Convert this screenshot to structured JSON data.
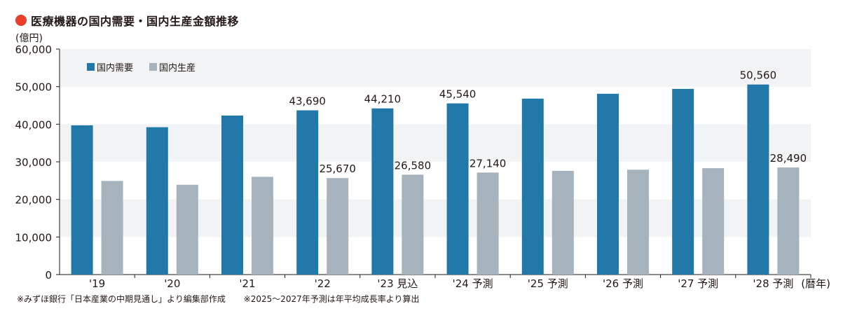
{
  "title": "医療機器の国内需要・国内生産金額推移",
  "colors": {
    "title_dot": "#e8402a",
    "demand": "#2079a8",
    "production": "#a6b2bc",
    "band": "#f2f3f5"
  },
  "chart_data": {
    "type": "bar",
    "y_unit_label": "(億円)",
    "x_unit_label": "(暦年)",
    "ylim": [
      0,
      60000
    ],
    "yticks": [
      "0",
      "10,000",
      "20,000",
      "30,000",
      "40,000",
      "50,000",
      "60,000"
    ],
    "categories": [
      "'19",
      "'20",
      "'21",
      "'22",
      "'23 見込",
      "'24 予測",
      "'25 予測",
      "'26 予測",
      "'27 予測",
      "'28 予測"
    ],
    "legend_position": "top-left",
    "series": [
      {
        "name": "国内需要",
        "values": [
          39700,
          39200,
          42300,
          43690,
          44210,
          45540,
          46800,
          48100,
          49400,
          50560
        ],
        "labels": [
          "",
          "",
          "",
          "43,690",
          "44,210",
          "45,540",
          "",
          "",
          "",
          "50,560"
        ]
      },
      {
        "name": "国内生産",
        "values": [
          24900,
          23900,
          26000,
          25670,
          26580,
          27140,
          27600,
          27900,
          28300,
          28490
        ],
        "labels": [
          "",
          "",
          "",
          "25,670",
          "26,580",
          "27,140",
          "",
          "",
          "",
          "28,490"
        ]
      }
    ]
  },
  "notes": [
    "※みずほ銀行「日本産業の中期見通し」より編集部作成",
    "※2025～2027年予測は年平均成長率より算出"
  ]
}
